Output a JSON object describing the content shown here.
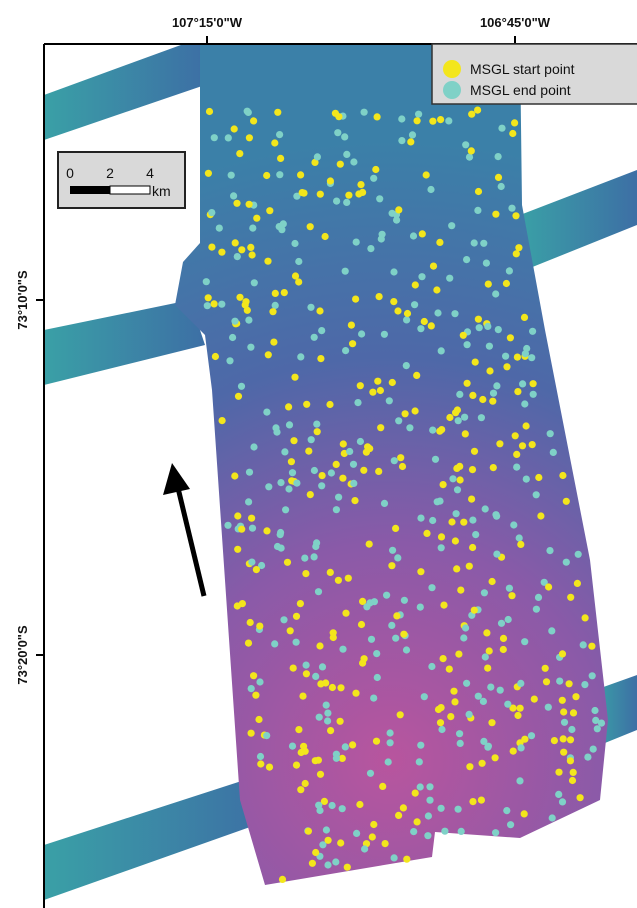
{
  "map": {
    "x_labels": [
      "107°15'0\"W",
      "106°45'0\"W"
    ],
    "y_labels": [
      "73°10'0\"S",
      "73°20'0\"S"
    ],
    "legend": [
      {
        "label": "MSGL start point",
        "color": "#f3e61c"
      },
      {
        "label": "MSGL end point",
        "color": "#7fd1c7"
      }
    ],
    "scale_bar": {
      "ticks": [
        0,
        2,
        4
      ],
      "unit": "km"
    }
  }
}
